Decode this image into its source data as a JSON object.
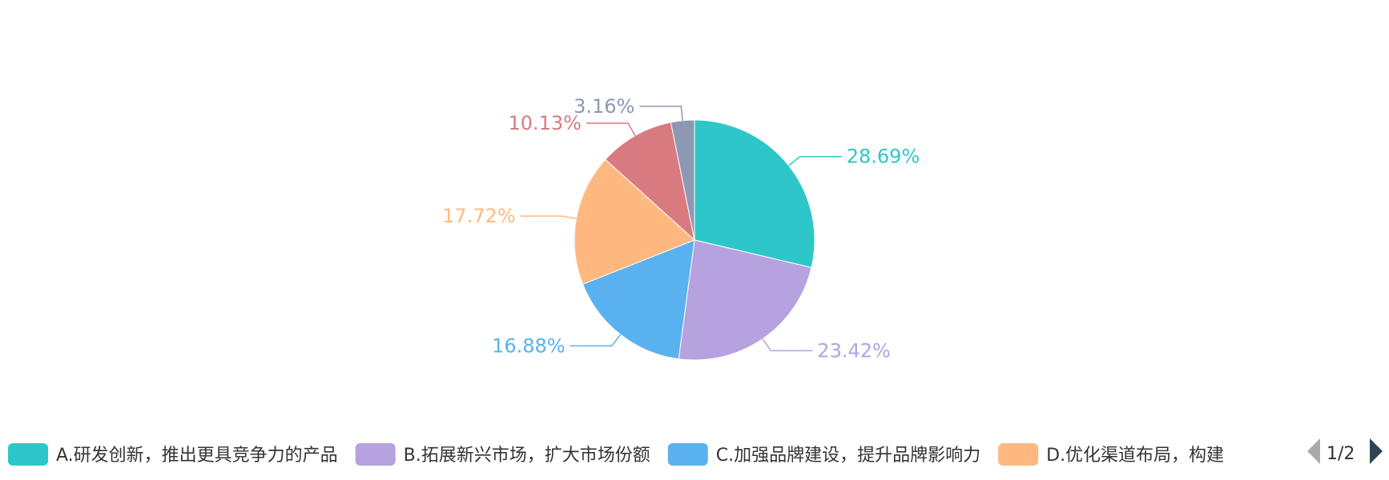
{
  "chart_data": {
    "type": "pie",
    "slices": [
      {
        "name": "A.研发创新，推出更具竞争力的产品",
        "value": 28.69,
        "label": "28.69%",
        "color": "#2ec7c9"
      },
      {
        "name": "B.拓展新兴市场，扩大市场份额",
        "value": 23.42,
        "label": "23.42%",
        "color": "#b6a2de"
      },
      {
        "name": "C.加强品牌建设，提升品牌影响力",
        "value": 16.88,
        "label": "16.88%",
        "color": "#5ab1ef"
      },
      {
        "name": "D.优化渠道布局，构建",
        "value": 17.72,
        "label": "17.72%",
        "color": "#ffb980"
      },
      {
        "name": "",
        "value": 10.13,
        "label": "10.13%",
        "color": "#d87a80"
      },
      {
        "name": "",
        "value": 3.16,
        "label": "3.16%",
        "color": "#8d98b3"
      }
    ],
    "legend": {
      "position": "bottom",
      "visible_items": 4,
      "page": "1/2"
    },
    "label_colors": {
      "A": "#2ec7c9",
      "B": "#b6a2de",
      "C": "#5ab1ef",
      "D": "#ffb980",
      "E": "#d87a80",
      "F": "#8d98b3"
    }
  }
}
